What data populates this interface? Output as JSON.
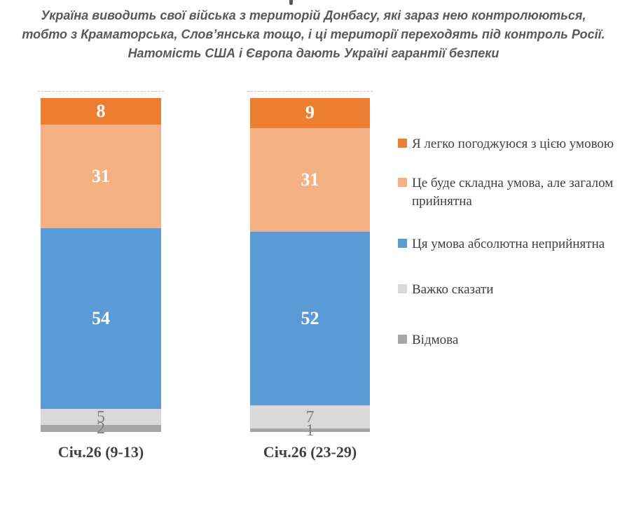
{
  "title": {
    "line1": "Україна виводить свої війська з територій Донбасу, які зараз нею контролюються,",
    "line2": "тобто з Краматорська, Слов’янська тощо, і ці території переходять під контроль Росії.",
    "line3": "Натомість США і Європа дають Україні гарантії безпеки"
  },
  "chart_data": {
    "type": "bar",
    "stacked": true,
    "orientation": "vertical",
    "units": "percent",
    "categories": [
      "Січ.26 (9-13)",
      "Січ.26 (23-29)"
    ],
    "series": [
      {
        "name": "Я легко погоджуюся з цією умовою",
        "color": "#ED7D31",
        "values": [
          8,
          9
        ],
        "label_color": "#FFFFFF",
        "label_bold": true
      },
      {
        "name": "Це буде складна умова, але загалом прийнятна",
        "color": "#F4B183",
        "values": [
          31,
          31
        ],
        "label_color": "#FFFFFF",
        "label_bold": true
      },
      {
        "name": "Ця умова абсолютна неприйнятна",
        "color": "#5B9BD5",
        "values": [
          54,
          52
        ],
        "label_color": "#FFFFFF",
        "label_bold": true
      },
      {
        "name": "Важко сказати",
        "color": "#D9D9D9",
        "values": [
          5,
          7
        ],
        "label_color": "#7F7F7F",
        "label_bold": false
      },
      {
        "name": "Відмова",
        "color": "#A6A6A6",
        "values": [
          2,
          1
        ],
        "label_color": "#7F7F7F",
        "label_bold": false
      }
    ],
    "ylim": [
      0,
      100
    ],
    "grid": false,
    "legend_position": "right"
  }
}
